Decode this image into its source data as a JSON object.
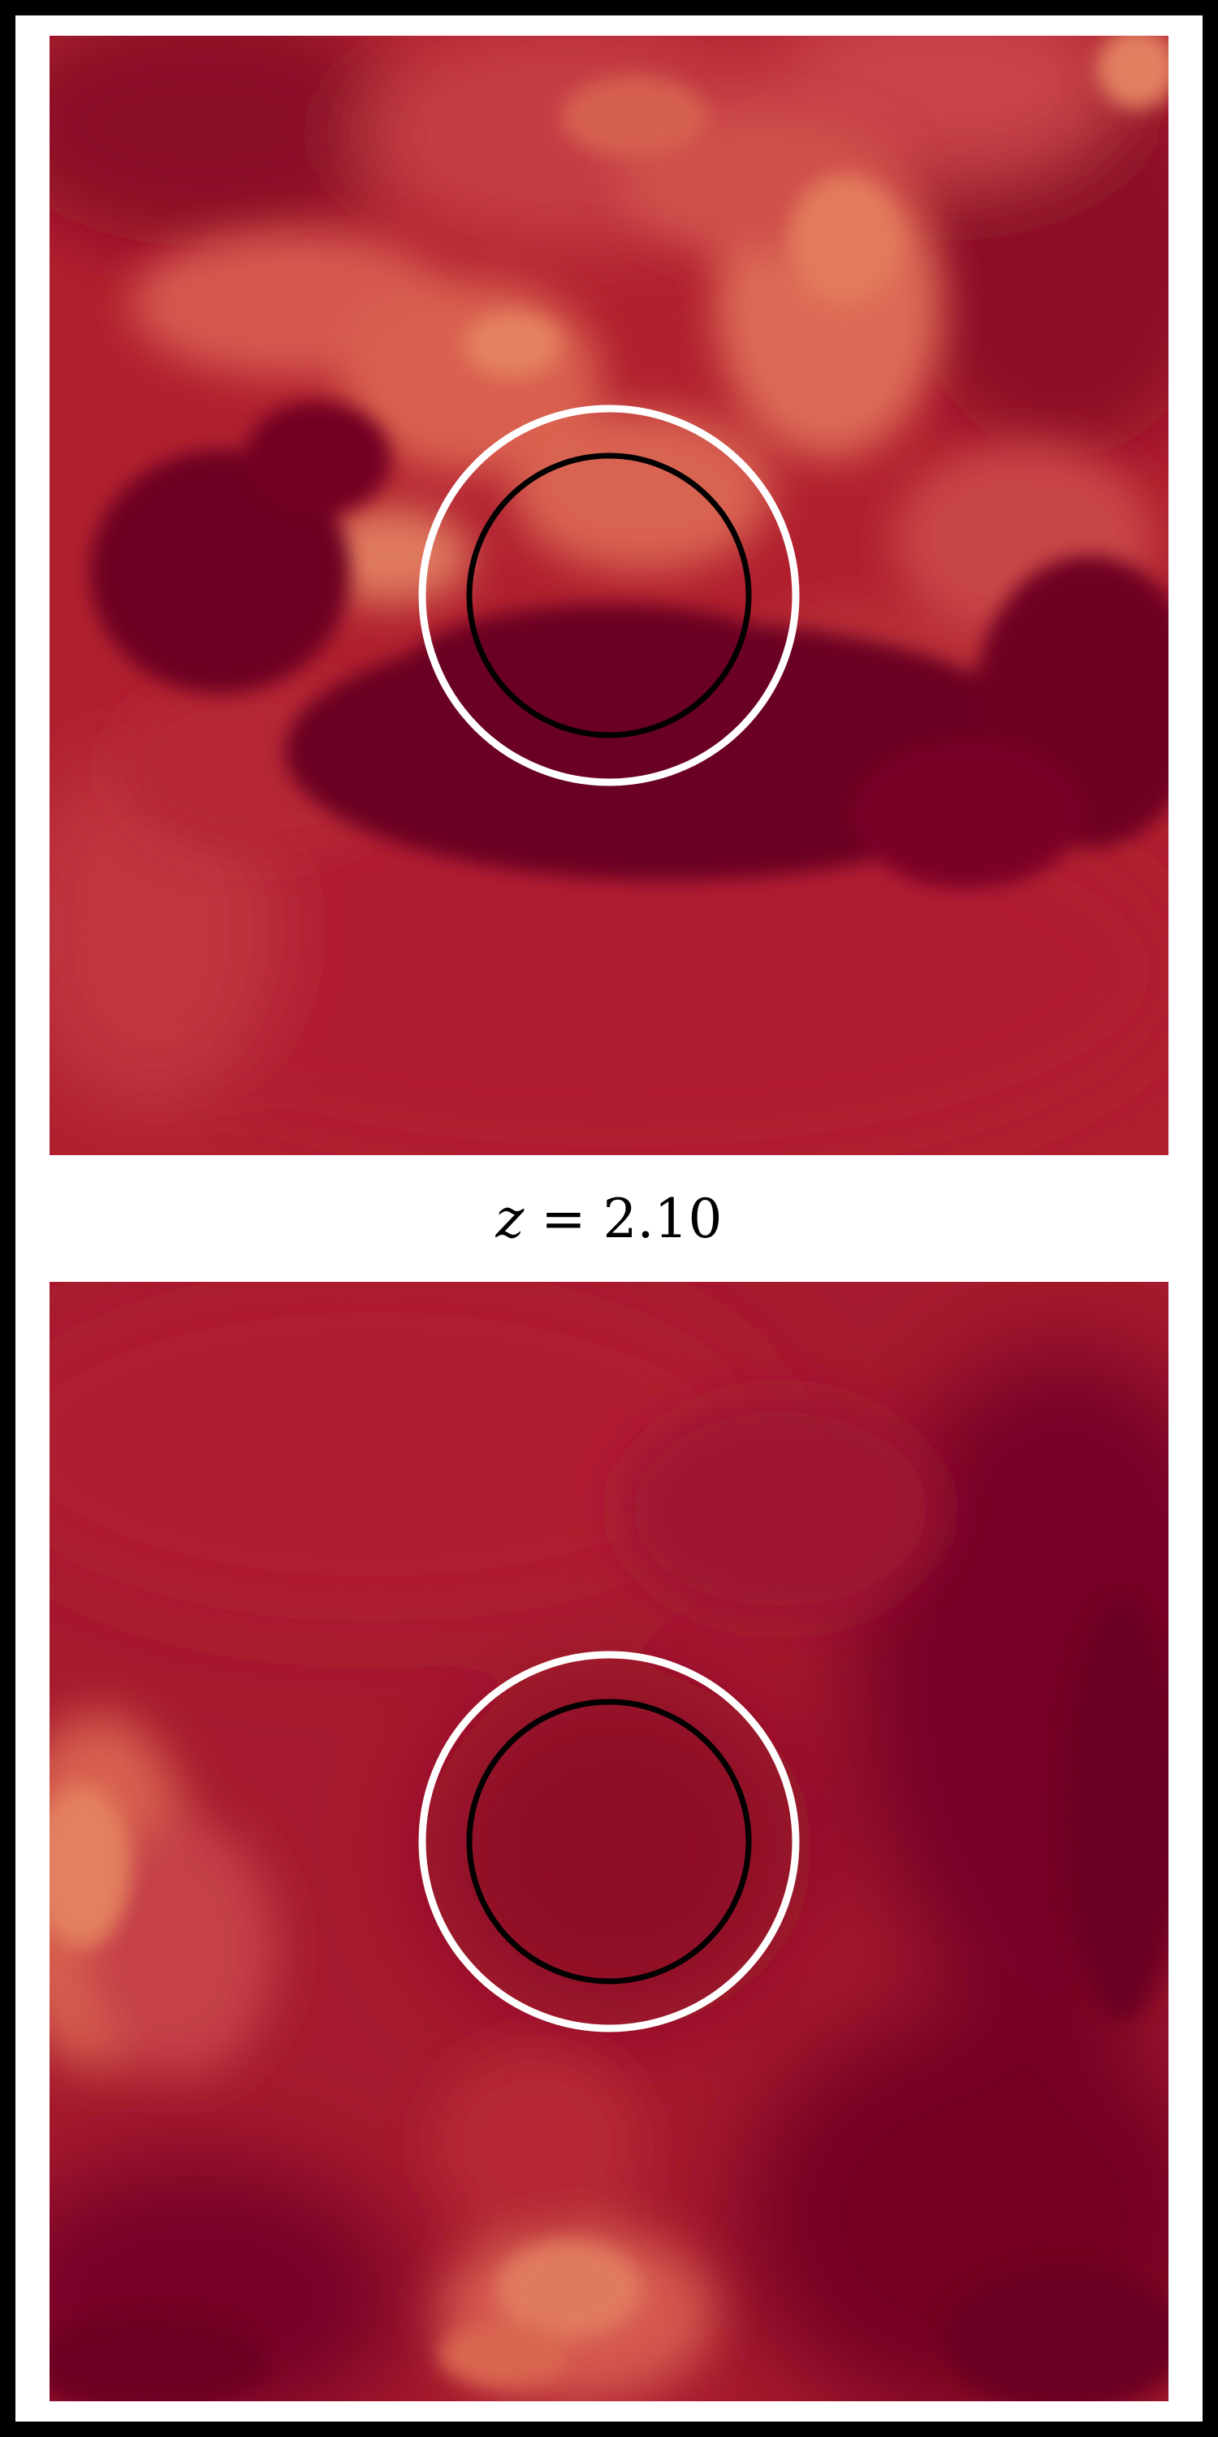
{
  "label": {
    "variable": "z",
    "equals": "=",
    "value": "2.10"
  },
  "colors": {
    "dark_crimson": "#6b0020",
    "crimson": "#a6192e",
    "red": "#b82232",
    "salmon": "#e0705c",
    "outer_ring": "#ffffff",
    "inner_ring": "#000000"
  },
  "panels": [
    {
      "name": "top-map",
      "colormap": "reds-dark"
    },
    {
      "name": "bottom-map",
      "colormap": "reds-dark"
    }
  ]
}
